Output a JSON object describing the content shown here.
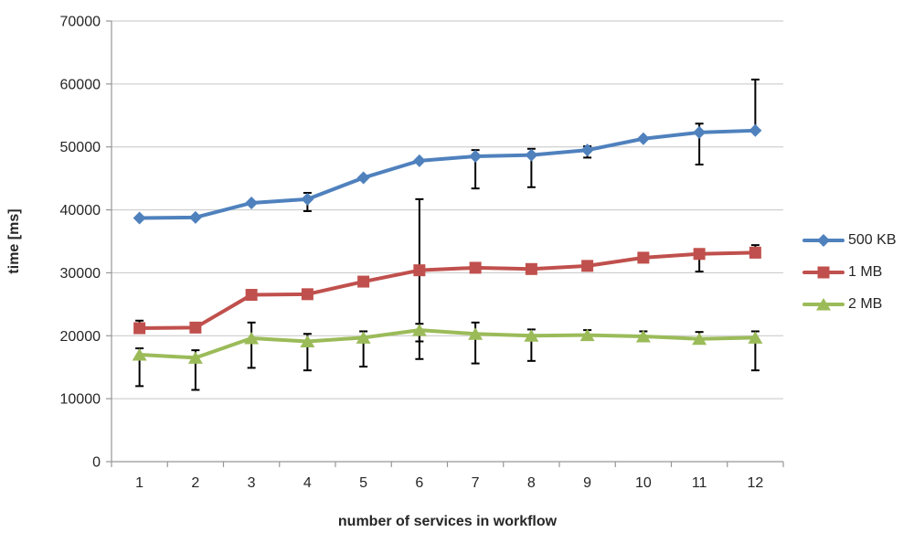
{
  "chart_data": {
    "type": "line",
    "title": "",
    "xlabel": "number of services in workflow",
    "ylabel": "time [ms]",
    "categories": [
      "1",
      "2",
      "3",
      "4",
      "5",
      "6",
      "7",
      "8",
      "9",
      "10",
      "11",
      "12"
    ],
    "ylim": [
      0,
      70000
    ],
    "yticks": [
      0,
      10000,
      20000,
      30000,
      40000,
      50000,
      60000,
      70000
    ],
    "grid": "horizontal-only",
    "legend_position": "right",
    "background_color": "#FFFFFF",
    "gridline_color": "#C6C6C6",
    "axis_color": "#969696",
    "text_color": "#262626",
    "error_bar_color": "#000000",
    "series": [
      {
        "name": "500 KB",
        "color": "#4F81BD",
        "marker": "diamond",
        "values": [
          38700,
          38800,
          41100,
          41700,
          45100,
          47800,
          48500,
          48700,
          49500,
          51300,
          52300,
          52600
        ],
        "error_top": [
          null,
          null,
          null,
          42700,
          null,
          null,
          49500,
          49700,
          50100,
          null,
          53700,
          60700
        ],
        "error_bottom": [
          null,
          null,
          null,
          39800,
          null,
          null,
          43400,
          43600,
          48300,
          null,
          47200,
          null
        ]
      },
      {
        "name": "1 MB",
        "color": "#C0504D",
        "marker": "square",
        "values": [
          21200,
          21300,
          26500,
          26600,
          28600,
          30400,
          30800,
          30600,
          31100,
          32400,
          33000,
          33200
        ],
        "error_top": [
          22400,
          null,
          null,
          null,
          null,
          41700,
          null,
          null,
          null,
          null,
          33600,
          34400
        ],
        "error_bottom": [
          null,
          null,
          null,
          null,
          null,
          19100,
          null,
          null,
          null,
          null,
          30200,
          null
        ]
      },
      {
        "name": "2 MB",
        "color": "#9BBB59",
        "marker": "triangle",
        "values": [
          17000,
          16500,
          19600,
          19100,
          19700,
          20900,
          20300,
          20000,
          20100,
          19900,
          19500,
          19700
        ],
        "error_top": [
          18000,
          17700,
          22100,
          20300,
          20700,
          21900,
          22100,
          21000,
          20900,
          20700,
          20600,
          20700
        ],
        "error_bottom": [
          12000,
          11400,
          14900,
          14500,
          15100,
          16300,
          15600,
          16000,
          null,
          null,
          null,
          14500
        ]
      }
    ]
  }
}
